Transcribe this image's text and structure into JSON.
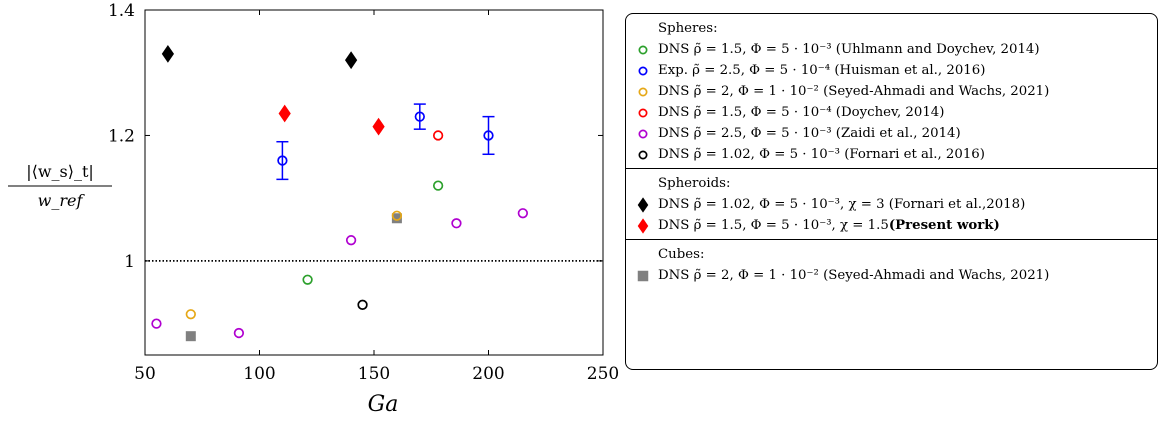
{
  "chart_data": {
    "type": "scatter",
    "xlabel": "Ga",
    "ylabel_num": "|⟨w_s⟩_t|",
    "ylabel_den": "w_ref",
    "xlim": [
      50,
      250
    ],
    "ylim": [
      0.85,
      1.4
    ],
    "x_ticks": [
      "50",
      "100",
      "150",
      "200",
      "250"
    ],
    "y_ticks": [
      "1",
      "1.2",
      "1.4"
    ],
    "reference_line": {
      "y": 1.0,
      "style": "dotted"
    },
    "series": [
      {
        "group": "spheres",
        "marker": "circle-open",
        "color": "#2ca02c",
        "points": [
          [
            121,
            0.97
          ],
          [
            178,
            1.12
          ]
        ]
      },
      {
        "group": "spheres",
        "marker": "circle-open",
        "color": "#0000ff",
        "points": [
          [
            110,
            1.16
          ],
          [
            170,
            1.23
          ],
          [
            200,
            1.2
          ]
        ],
        "errors": [
          0.03,
          0.02,
          0.03
        ]
      },
      {
        "group": "spheres",
        "marker": "circle-open",
        "color": "#e6a817",
        "points": [
          [
            70,
            0.915
          ],
          [
            160,
            1.072
          ]
        ]
      },
      {
        "group": "spheres",
        "marker": "circle-open",
        "color": "#ff0000",
        "points": [
          [
            178,
            1.2
          ]
        ]
      },
      {
        "group": "spheres",
        "marker": "circle-open",
        "color": "#b000d0",
        "points": [
          [
            55,
            0.9
          ],
          [
            91,
            0.885
          ],
          [
            140,
            1.033
          ],
          [
            186,
            1.06
          ],
          [
            215,
            1.076
          ]
        ]
      },
      {
        "group": "spheres",
        "marker": "circle-open",
        "color": "#000000",
        "points": [
          [
            145,
            0.93
          ]
        ]
      },
      {
        "group": "spheroids",
        "marker": "diamond",
        "color": "#000000",
        "points": [
          [
            60,
            1.33
          ],
          [
            140,
            1.32
          ]
        ]
      },
      {
        "group": "spheroids",
        "marker": "diamond",
        "color": "#ff0000",
        "points": [
          [
            111,
            1.235
          ],
          [
            152,
            1.214
          ]
        ]
      },
      {
        "group": "cubes",
        "marker": "square",
        "color": "#808080",
        "points": [
          [
            70,
            0.88
          ],
          [
            160,
            1.068
          ]
        ]
      }
    ],
    "legend": {
      "position": "right",
      "sections": [
        {
          "title": "Spheres:",
          "entries": [
            {
              "marker": "circle-open",
              "color": "#2ca02c",
              "text": "DNS ρ̃ = 1.5,  Φ = 5 · 10⁻³ (Uhlmann and Doychev, 2014)"
            },
            {
              "marker": "circle-open",
              "color": "#0000ff",
              "text": "Exp. ρ̃ = 2.5,  Φ = 5 · 10⁻⁴ (Huisman et al., 2016)"
            },
            {
              "marker": "circle-open",
              "color": "#e6a817",
              "text": "DNS ρ̃ = 2,     Φ = 1 · 10⁻² (Seyed-Ahmadi and Wachs, 2021)"
            },
            {
              "marker": "circle-open",
              "color": "#ff0000",
              "text": "DNS ρ̃ = 1.5,  Φ = 5 · 10⁻⁴ (Doychev, 2014)"
            },
            {
              "marker": "circle-open",
              "color": "#b000d0",
              "text": "DNS ρ̃ = 2.5,  Φ = 5 · 10⁻³ (Zaidi et al., 2014)"
            },
            {
              "marker": "circle-open",
              "color": "#000000",
              "text": "DNS ρ̃ = 1.02, Φ = 5 · 10⁻³ (Fornari et al., 2016)"
            }
          ]
        },
        {
          "title": "Spheroids:",
          "entries": [
            {
              "marker": "diamond",
              "color": "#000000",
              "text": "DNS ρ̃ = 1.02, Φ = 5 · 10⁻³, χ = 3   (Fornari et al.,2018)",
              "bold": ""
            },
            {
              "marker": "diamond",
              "color": "#ff0000",
              "text": "DNS ρ̃ = 1.5,  Φ = 5 · 10⁻³, χ = 1.5 ",
              "bold": "(Present work)"
            }
          ]
        },
        {
          "title": "Cubes:",
          "entries": [
            {
              "marker": "square",
              "color": "#808080",
              "text": "DNS ρ̃ = 2, Φ = 1 · 10⁻² (Seyed-Ahmadi and Wachs, 2021)"
            }
          ]
        }
      ]
    }
  }
}
